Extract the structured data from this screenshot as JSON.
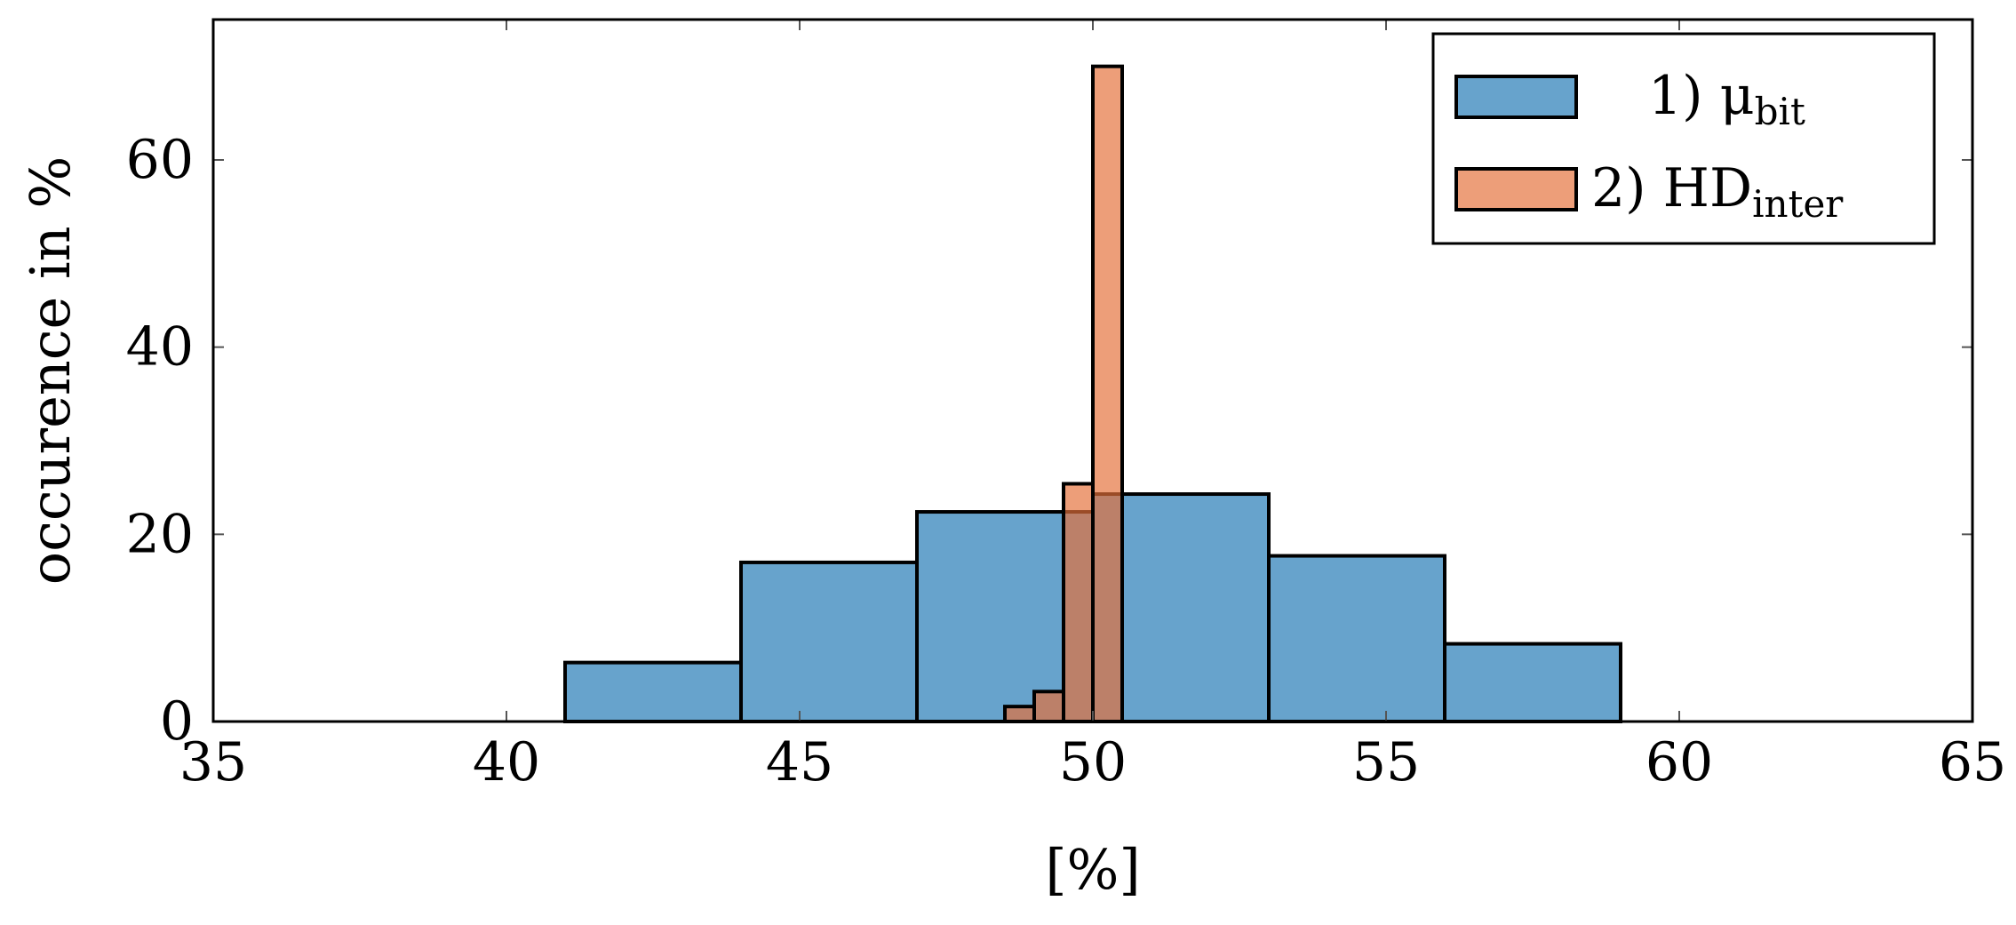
{
  "chart_data": {
    "type": "bar",
    "xlabel": "[%]",
    "ylabel": "occurence in %",
    "xlim": [
      35,
      65
    ],
    "ylim": [
      0,
      75
    ],
    "xticks": [
      35,
      40,
      45,
      50,
      55,
      60,
      65
    ],
    "yticks": [
      0,
      20,
      40,
      60
    ],
    "grid": false,
    "legend_position": "top-right",
    "series": [
      {
        "name": "1) μbit",
        "legend_main": "1) μ",
        "legend_sub": "bit",
        "color": "#1f77b4",
        "opacity": 0.68,
        "bins": [
          {
            "x0": 41,
            "x1": 44,
            "value": 6.3
          },
          {
            "x0": 44,
            "x1": 47,
            "value": 17
          },
          {
            "x0": 47,
            "x1": 50,
            "value": 22.4
          },
          {
            "x0": 50,
            "x1": 53,
            "value": 24.3
          },
          {
            "x0": 53,
            "x1": 56,
            "value": 17.7
          },
          {
            "x0": 56,
            "x1": 59,
            "value": 8.3
          }
        ]
      },
      {
        "name": "2) HDinter",
        "legend_main": "2) HD",
        "legend_sub": "inter",
        "color": "#e4703a",
        "opacity": 0.68,
        "bins": [
          {
            "x0": 48.5,
            "x1": 49.0,
            "value": 1.6
          },
          {
            "x0": 49.0,
            "x1": 49.5,
            "value": 3.2
          },
          {
            "x0": 49.5,
            "x1": 50.0,
            "value": 25.4
          },
          {
            "x0": 50.0,
            "x1": 50.5,
            "value": 70
          }
        ]
      }
    ]
  }
}
